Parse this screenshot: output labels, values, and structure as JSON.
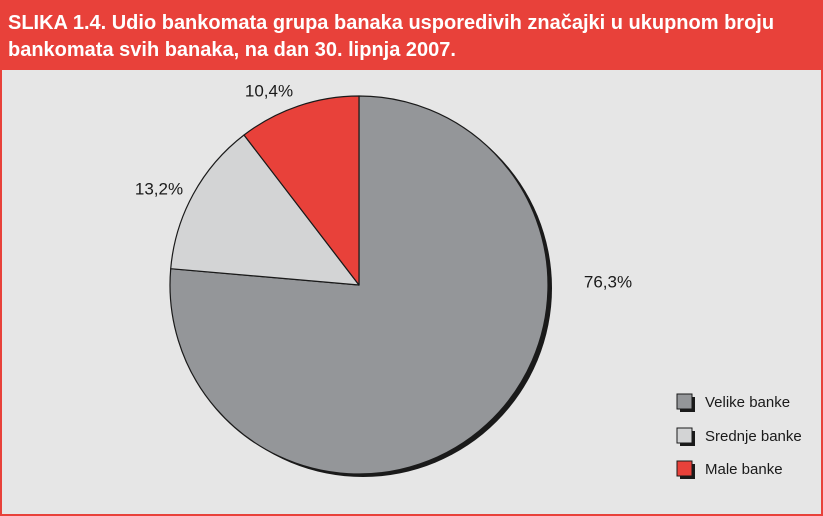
{
  "figure": {
    "title": "SLIKA 1.4. Udio bankomata grupa banaka usporedivih značajki u ukupnom broju bankomata svih banaka, na dan 30. lipnja 2007."
  },
  "chart_data": {
    "type": "pie",
    "title": "SLIKA 1.4. Udio bankomata grupa banaka usporedivih značajki u ukupnom broju bankomata svih banaka, na dan 30. lipnja 2007.",
    "slices": [
      {
        "name": "Velike banke",
        "value": 76.3,
        "label": "76,3%",
        "color": "#949699"
      },
      {
        "name": "Srednje banke",
        "value": 13.2,
        "label": "13,2%",
        "color": "#d3d4d5"
      },
      {
        "name": "Male banke",
        "value": 10.4,
        "label": "10,4%",
        "color": "#e8413a"
      }
    ],
    "start_angle": "12 o'clock",
    "direction": "clockwise",
    "legend_position": "bottom-right"
  }
}
